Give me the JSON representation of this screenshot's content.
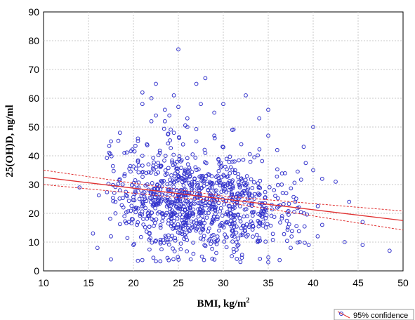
{
  "chart_data": {
    "type": "scatter",
    "xlabel": "BMI, kg/m",
    "xlabel_sup": "2",
    "ylabel": "25(OH)D, ng/ml",
    "xlim": [
      10,
      50
    ],
    "ylim": [
      0,
      90
    ],
    "xticks": [
      "10",
      "15",
      "20",
      "25",
      "30",
      "35",
      "40",
      "45",
      "50"
    ],
    "yticks": [
      "0",
      "10",
      "20",
      "30",
      "40",
      "50",
      "60",
      "70",
      "80",
      "90"
    ],
    "grid": true,
    "legend": {
      "position": "bottom-right",
      "label": "95% confidence"
    },
    "colors": {
      "points": "#3333cc",
      "fit": "#e03030",
      "grid": "#c8c8c8"
    },
    "regression": {
      "x": [
        10,
        50
      ],
      "y": [
        32.5,
        17.5
      ]
    },
    "confidence_band": {
      "upper": {
        "x": [
          10,
          30,
          50
        ],
        "y": [
          35.0,
          26.0,
          20.8
        ]
      },
      "lower": {
        "x": [
          10,
          30,
          50
        ],
        "y": [
          30.0,
          24.0,
          14.2
        ]
      }
    },
    "series": [
      {
        "points": [
          [
            25,
            77
          ],
          [
            28,
            67
          ],
          [
            27,
            65
          ],
          [
            22.5,
            65
          ],
          [
            21,
            62
          ],
          [
            24.5,
            61
          ],
          [
            32.5,
            61
          ],
          [
            22,
            60
          ],
          [
            21,
            58
          ],
          [
            27.5,
            58
          ],
          [
            30,
            58
          ],
          [
            25,
            57
          ],
          [
            23.5,
            56
          ],
          [
            35,
            56
          ],
          [
            29,
            55
          ],
          [
            24,
            54
          ],
          [
            22.5,
            54
          ],
          [
            26,
            53
          ],
          [
            34,
            53
          ],
          [
            23.5,
            52
          ],
          [
            22,
            52
          ],
          [
            40,
            50
          ],
          [
            18.5,
            48
          ],
          [
            31,
            49
          ],
          [
            26,
            50
          ],
          [
            24.5,
            48
          ],
          [
            29,
            47
          ],
          [
            35,
            47
          ],
          [
            17.5,
            45
          ],
          [
            20.5,
            46
          ],
          [
            27,
            45
          ],
          [
            32,
            44
          ],
          [
            30,
            43
          ],
          [
            36,
            42
          ],
          [
            28,
            41
          ],
          [
            19,
            41
          ],
          [
            41,
            32
          ],
          [
            42.5,
            31
          ],
          [
            40,
            35
          ],
          [
            14,
            29
          ],
          [
            17.5,
            4
          ],
          [
            20.5,
            3.5
          ],
          [
            15.5,
            13
          ],
          [
            16,
            8
          ],
          [
            44,
            24
          ],
          [
            43.5,
            10
          ],
          [
            45.5,
            17
          ],
          [
            45.5,
            9
          ],
          [
            48.5,
            7
          ],
          [
            35,
            3
          ],
          [
            39.5,
            9
          ],
          [
            38.5,
            10
          ],
          [
            37,
            27
          ],
          [
            38,
            24
          ],
          [
            36.5,
            30
          ],
          [
            39,
            20
          ],
          [
            41,
            16
          ],
          [
            40.5,
            12
          ],
          [
            37.5,
            8
          ],
          [
            36,
            22
          ],
          [
            18,
            20
          ],
          [
            18.5,
            28
          ],
          [
            19,
            33
          ],
          [
            17.5,
            12
          ],
          [
            18,
            24
          ],
          [
            19.5,
            17
          ],
          [
            20,
            9
          ],
          [
            20.5,
            38
          ],
          [
            21.5,
            44
          ],
          [
            21,
            40
          ]
        ],
        "clusters": [
          {
            "cx": 26,
            "cy": 24,
            "sx": 3.4,
            "sy": 9.5,
            "n": 520
          },
          {
            "cx": 31,
            "cy": 22,
            "sx": 3.0,
            "sy": 8.5,
            "n": 230
          },
          {
            "cx": 22,
            "cy": 26,
            "sx": 2.2,
            "sy": 10,
            "n": 150
          },
          {
            "cx": 35,
            "cy": 21,
            "sx": 2.5,
            "sy": 8,
            "n": 70
          }
        ]
      }
    ]
  }
}
